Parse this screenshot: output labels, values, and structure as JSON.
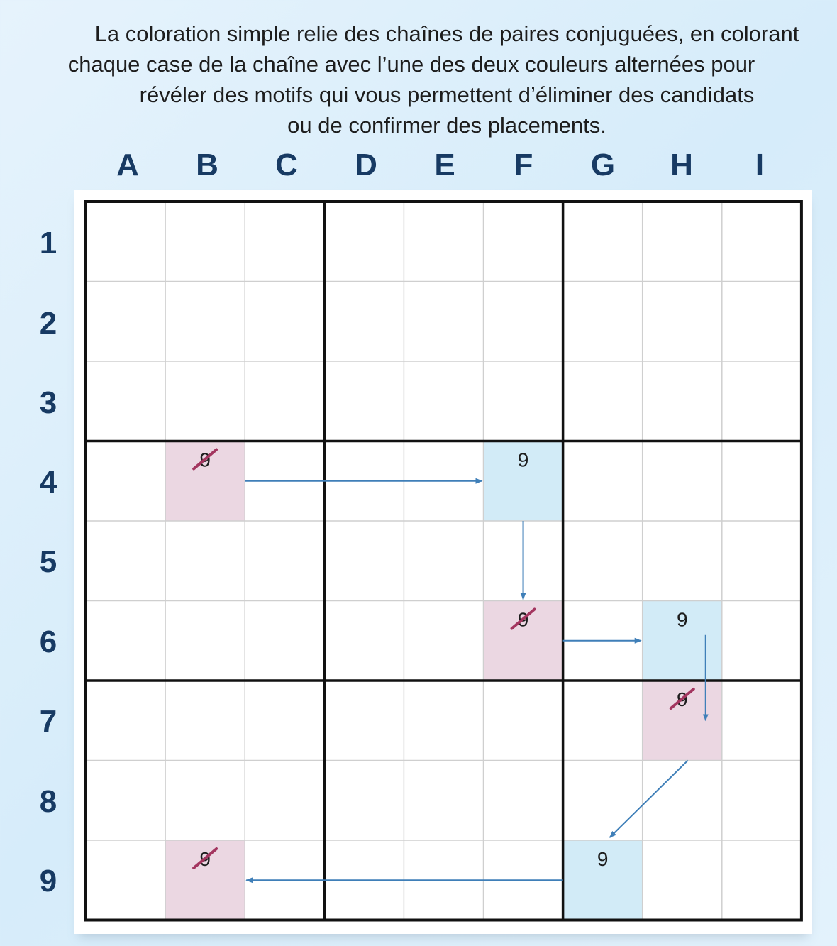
{
  "caption": {
    "line1": "La coloration simple relie des chaînes de paires conjuguées, en colorant",
    "line2": "chaque case de la chaîne avec l’une des deux couleurs alternées pour",
    "line3": "révéler des motifs qui vous permettent d’éliminer des candidats",
    "line4": "ou de confirmer des placements."
  },
  "columns": [
    "A",
    "B",
    "C",
    "D",
    "E",
    "F",
    "G",
    "H",
    "I"
  ],
  "rows": [
    "1",
    "2",
    "3",
    "4",
    "5",
    "6",
    "7",
    "8",
    "9"
  ],
  "colors": {
    "pink": "#ebd7e2",
    "blue": "#d2ebf7",
    "arrow": "#3f7fb8",
    "strike": "#a3355f",
    "label": "#173a63"
  },
  "cells": [
    {
      "col": "B",
      "row": 4,
      "color": "pink",
      "digit": "9",
      "struck": true
    },
    {
      "col": "F",
      "row": 4,
      "color": "blue",
      "digit": "9",
      "struck": false
    },
    {
      "col": "F",
      "row": 6,
      "color": "pink",
      "digit": "9",
      "struck": true
    },
    {
      "col": "H",
      "row": 6,
      "color": "blue",
      "digit": "9",
      "struck": false
    },
    {
      "col": "H",
      "row": 7,
      "color": "pink",
      "digit": "9",
      "struck": true
    },
    {
      "col": "G",
      "row": 9,
      "color": "blue",
      "digit": "9",
      "struck": false
    },
    {
      "col": "B",
      "row": 9,
      "color": "pink",
      "digit": "9",
      "struck": true
    }
  ],
  "chain": [
    {
      "from": "B4",
      "to": "F4"
    },
    {
      "from": "F4",
      "to": "F6"
    },
    {
      "from": "F6",
      "to": "H6"
    },
    {
      "from": "H6",
      "to": "H7"
    },
    {
      "from": "H7",
      "to": "G9"
    },
    {
      "from": "G9",
      "to": "B9"
    }
  ]
}
